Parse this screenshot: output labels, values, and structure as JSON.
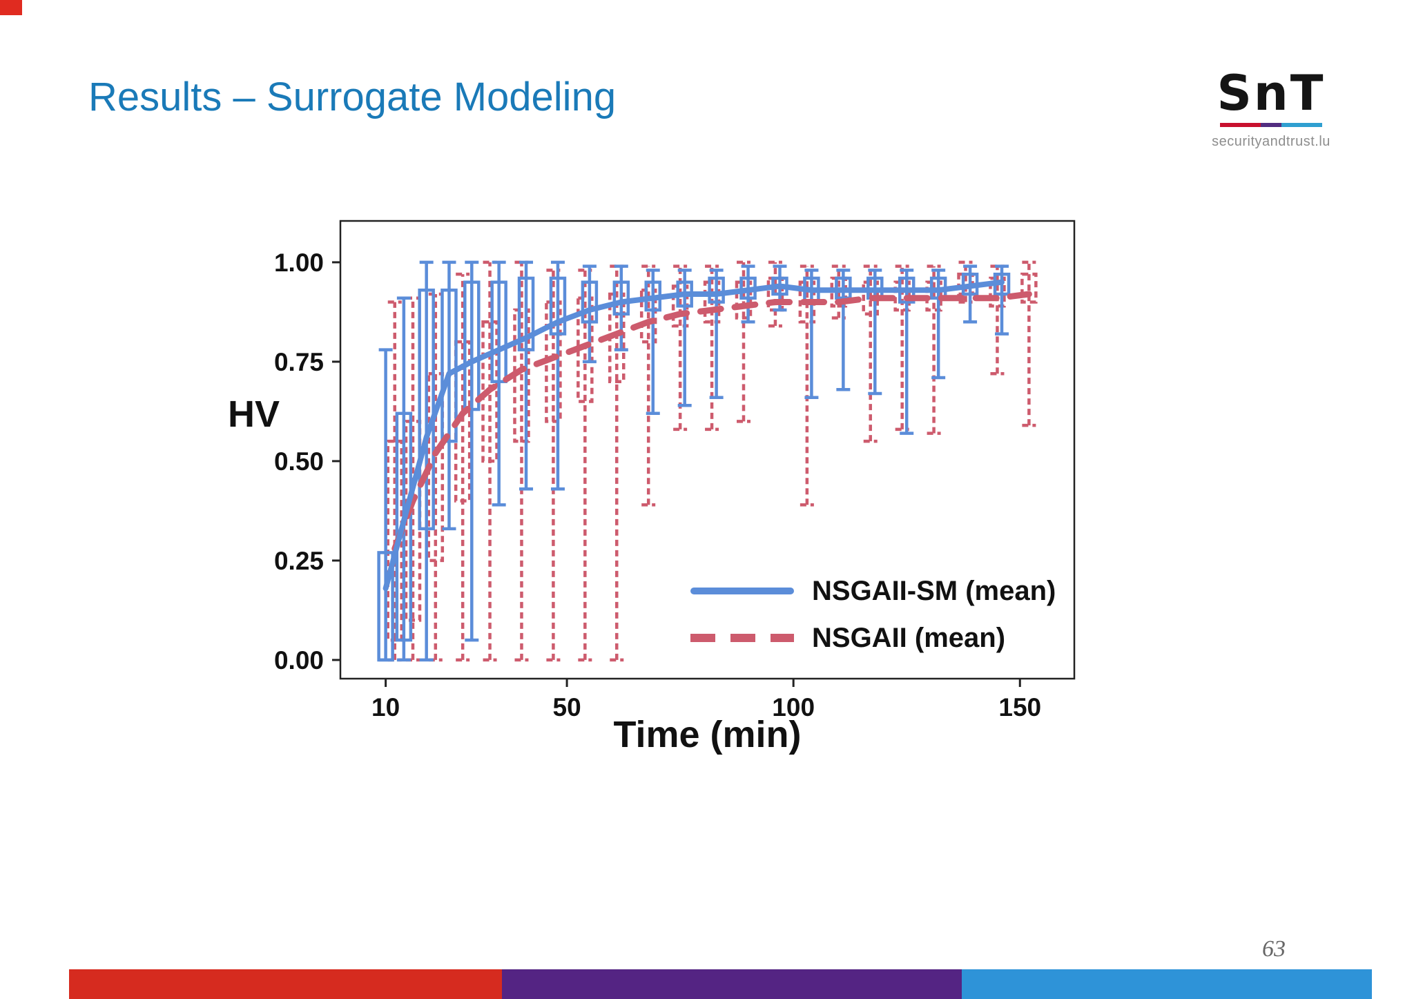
{
  "slide": {
    "title": "Results – Surrogate Modeling",
    "page_number": "63",
    "corner_accent_color": "#e02b20"
  },
  "logo": {
    "text": "SnT",
    "subtitle": "securityandtrust.lu",
    "bar_colors": [
      "#c8102e",
      "#522d80",
      "#2f9fd0"
    ]
  },
  "footer": {
    "bar_colors": [
      "#d62b1f",
      "#542483",
      "#2e93d8"
    ]
  },
  "chart_data": {
    "type": "line",
    "title": "",
    "xlabel": "Time (min)",
    "ylabel": "HV",
    "xlim": [
      0,
      162
    ],
    "ylim": [
      -0.047,
      1.104
    ],
    "xticks": [
      10,
      50,
      100,
      150
    ],
    "xtick_labels": [
      "10",
      "50",
      "100",
      "150"
    ],
    "yticks": [
      0,
      0.25,
      0.5,
      0.75,
      1.0
    ],
    "ytick_labels": [
      "0.00",
      "0.25",
      "0.50",
      "0.75",
      "1.00"
    ],
    "grid": false,
    "legend_position": "inside-bottom-right",
    "series": [
      {
        "name": "NSGAII-SM (mean)",
        "color": "#5b8dd9",
        "line_style": "solid",
        "mean": [
          [
            10,
            0.18
          ],
          [
            14,
            0.35
          ],
          [
            19,
            0.56
          ],
          [
            24,
            0.72
          ],
          [
            29,
            0.75
          ],
          [
            35,
            0.78
          ],
          [
            41,
            0.81
          ],
          [
            48,
            0.85
          ],
          [
            55,
            0.88
          ],
          [
            62,
            0.9
          ],
          [
            69,
            0.91
          ],
          [
            76,
            0.92
          ],
          [
            83,
            0.92
          ],
          [
            90,
            0.93
          ],
          [
            97,
            0.94
          ],
          [
            104,
            0.93
          ],
          [
            111,
            0.93
          ],
          [
            118,
            0.93
          ],
          [
            125,
            0.93
          ],
          [
            132,
            0.93
          ],
          [
            139,
            0.94
          ],
          [
            146,
            0.95
          ]
        ],
        "errorbars": [
          [
            10,
            0,
            0.78,
            0,
            0.27
          ],
          [
            14,
            0,
            0.91,
            0.05,
            0.62
          ],
          [
            19,
            0,
            1.0,
            0.33,
            0.93
          ],
          [
            24,
            0.33,
            1.0,
            0.55,
            0.93
          ],
          [
            29,
            0.05,
            1.0,
            0.63,
            0.95
          ],
          [
            35,
            0.39,
            1.0,
            0.7,
            0.95
          ],
          [
            41,
            0.43,
            1.0,
            0.78,
            0.96
          ],
          [
            48,
            0.43,
            1.0,
            0.82,
            0.96
          ],
          [
            55,
            0.75,
            0.99,
            0.85,
            0.95
          ],
          [
            62,
            0.78,
            0.99,
            0.87,
            0.95
          ],
          [
            69,
            0.62,
            0.98,
            0.88,
            0.95
          ],
          [
            76,
            0.64,
            0.98,
            0.89,
            0.95
          ],
          [
            83,
            0.66,
            0.98,
            0.9,
            0.96
          ],
          [
            90,
            0.85,
            0.99,
            0.91,
            0.96
          ],
          [
            97,
            0.88,
            0.99,
            0.92,
            0.96
          ],
          [
            104,
            0.66,
            0.98,
            0.9,
            0.96
          ],
          [
            111,
            0.68,
            0.98,
            0.91,
            0.96
          ],
          [
            118,
            0.67,
            0.98,
            0.91,
            0.96
          ],
          [
            125,
            0.57,
            0.98,
            0.9,
            0.96
          ],
          [
            132,
            0.71,
            0.98,
            0.91,
            0.96
          ],
          [
            139,
            0.85,
            0.99,
            0.92,
            0.97
          ],
          [
            146,
            0.82,
            0.99,
            0.92,
            0.97
          ]
        ]
      },
      {
        "name": "NSGAII (mean)",
        "color": "#cd5b6d",
        "line_style": "dashed",
        "mean": [
          [
            12,
            0.28
          ],
          [
            16,
            0.4
          ],
          [
            21,
            0.52
          ],
          [
            27,
            0.62
          ],
          [
            33,
            0.68
          ],
          [
            40,
            0.73
          ],
          [
            47,
            0.76
          ],
          [
            54,
            0.79
          ],
          [
            61,
            0.82
          ],
          [
            68,
            0.85
          ],
          [
            75,
            0.87
          ],
          [
            82,
            0.88
          ],
          [
            89,
            0.89
          ],
          [
            96,
            0.9
          ],
          [
            103,
            0.9
          ],
          [
            110,
            0.9
          ],
          [
            117,
            0.91
          ],
          [
            124,
            0.91
          ],
          [
            131,
            0.91
          ],
          [
            138,
            0.91
          ],
          [
            145,
            0.91
          ],
          [
            152,
            0.92
          ]
        ],
        "errorbars": [
          [
            12,
            0,
            0.9,
            0.05,
            0.55
          ],
          [
            16,
            0,
            0.91,
            0.1,
            0.6
          ],
          [
            21,
            0,
            0.92,
            0.25,
            0.72
          ],
          [
            27,
            0,
            0.97,
            0.4,
            0.8
          ],
          [
            33,
            0,
            1.0,
            0.5,
            0.85
          ],
          [
            40,
            0,
            1.0,
            0.55,
            0.88
          ],
          [
            47,
            0,
            0.98,
            0.6,
            0.9
          ],
          [
            54,
            0,
            0.98,
            0.65,
            0.91
          ],
          [
            61,
            0,
            0.99,
            0.7,
            0.92
          ],
          [
            68,
            0.39,
            0.99,
            0.8,
            0.93
          ],
          [
            75,
            0.58,
            0.99,
            0.84,
            0.94
          ],
          [
            82,
            0.58,
            0.99,
            0.85,
            0.95
          ],
          [
            89,
            0.6,
            1.0,
            0.86,
            0.95
          ],
          [
            96,
            0.84,
            1.0,
            0.88,
            0.96
          ],
          [
            103,
            0.39,
            0.99,
            0.85,
            0.95
          ],
          [
            110,
            0.86,
            0.99,
            0.89,
            0.96
          ],
          [
            117,
            0.55,
            0.99,
            0.87,
            0.95
          ],
          [
            124,
            0.58,
            0.99,
            0.88,
            0.95
          ],
          [
            131,
            0.57,
            0.99,
            0.88,
            0.95
          ],
          [
            138,
            0.9,
            1.0,
            0.92,
            0.97
          ],
          [
            145,
            0.72,
            0.99,
            0.89,
            0.96
          ],
          [
            152,
            0.59,
            1.0,
            0.9,
            0.97
          ]
        ]
      }
    ]
  }
}
